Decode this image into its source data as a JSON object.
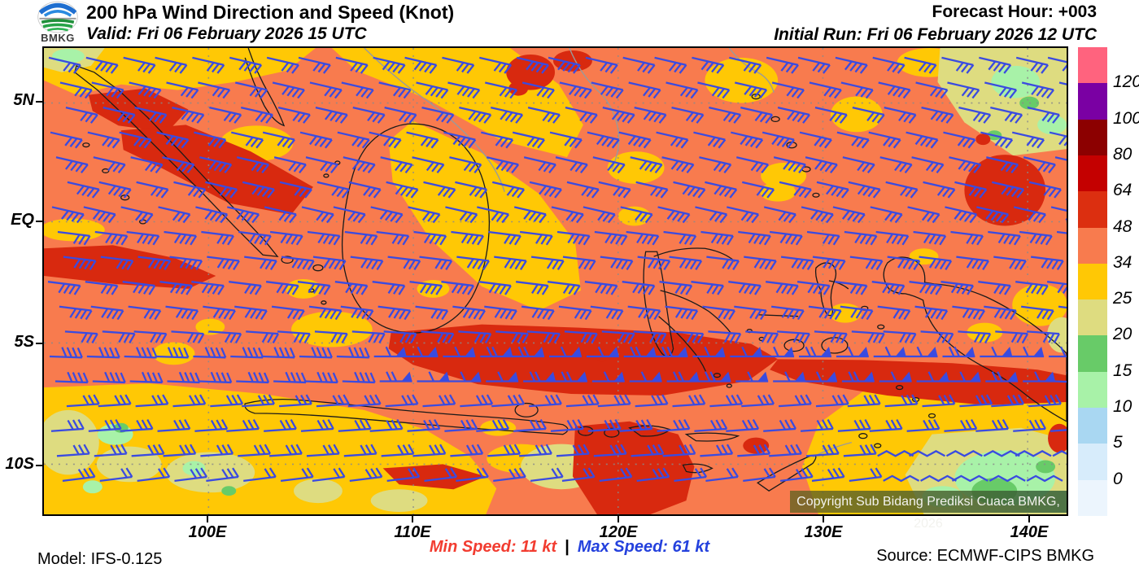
{
  "header": {
    "logo_text": "BMKG",
    "title": "200 hPa Wind Direction and Speed (Knot)",
    "valid_label": "Valid: Fri 06 February 2026 15 UTC",
    "forecast_hour": "Forecast Hour: +003",
    "initial_run": "Initial Run: Fri 06 February 2026 12 UTC"
  },
  "map": {
    "x_tick_labels": [
      "100E",
      "110E",
      "120E",
      "130E",
      "140E"
    ],
    "y_tick_labels": [
      "5N",
      "EQ",
      "5S",
      "10S"
    ],
    "copyright": "Copyright Sub Bidang Prediksi Cuaca BMKG, 2026",
    "coastline_color": "#1a1a1a",
    "foreign_coastline_color": "#9a9a9a",
    "grid_color": "#8a8a8a"
  },
  "wind_field": {
    "barb_color": "#3A4BE0"
  },
  "speed_scale": {
    "unit": "Knot",
    "levels": [
      120,
      100,
      80,
      64,
      48,
      34,
      25,
      20,
      15,
      10,
      5,
      0
    ],
    "colors_top_to_bottom": [
      "#FF637E",
      "#7A00A3",
      "#8C0000",
      "#C40000",
      "#DC2F10",
      "#F87B4E",
      "#FFC805",
      "#DEDC80",
      "#68CB68",
      "#A8F2A8",
      "#A9D7F2",
      "#D7ECFB",
      "#ECF5FD"
    ]
  },
  "fill_palette": {
    "salmon": "#F87B4E",
    "gold": "#FFC805",
    "khaki": "#DEDC80",
    "green": "#68CB68",
    "lgreen": "#A8F2A8",
    "red": "#D8290F"
  },
  "footer": {
    "model": "Model: IFS-0.125",
    "min_speed": "Min Speed:  11 kt",
    "separator": "|",
    "max_speed": "Max Speed:  61 kt",
    "source": "Source: ECMWF-CIPS BMKG"
  }
}
